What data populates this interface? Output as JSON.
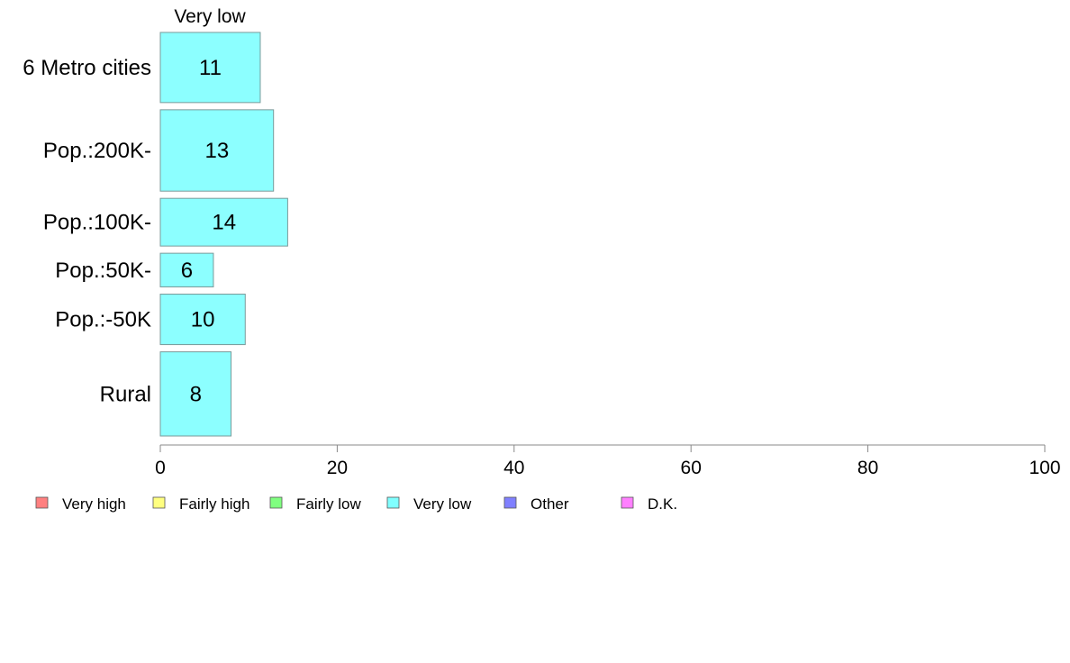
{
  "chart_data": {
    "type": "bar",
    "orientation": "horizontal",
    "series_title": "Very low",
    "categories": [
      "6 Metro cities",
      "Pop.:200K-",
      "Pop.:100K-",
      "Pop.:50K-",
      "Pop.:-50K",
      "Rural"
    ],
    "values": [
      11.3,
      12.8,
      14.4,
      6.0,
      9.6,
      8.0
    ],
    "data_labels": [
      "11",
      "13",
      "14",
      "6",
      "10",
      "8"
    ],
    "relative_widths": [
      1.25,
      1.45,
      0.85,
      0.6,
      0.9,
      1.5
    ],
    "xlim": [
      0,
      100
    ],
    "xticks": [
      "0",
      "20",
      "40",
      "60",
      "80",
      "100"
    ],
    "bar_color": "#8cffff",
    "legend_position": "bottom-left",
    "legend": [
      {
        "label": "Very high",
        "color": "#ff8080"
      },
      {
        "label": "Fairly high",
        "color": "#ffff80"
      },
      {
        "label": "Fairly low",
        "color": "#80ff80"
      },
      {
        "label": "Very low",
        "color": "#80ffff"
      },
      {
        "label": "Other",
        "color": "#8080ff"
      },
      {
        "label": "D.K.",
        "color": "#ff80ff"
      }
    ]
  }
}
